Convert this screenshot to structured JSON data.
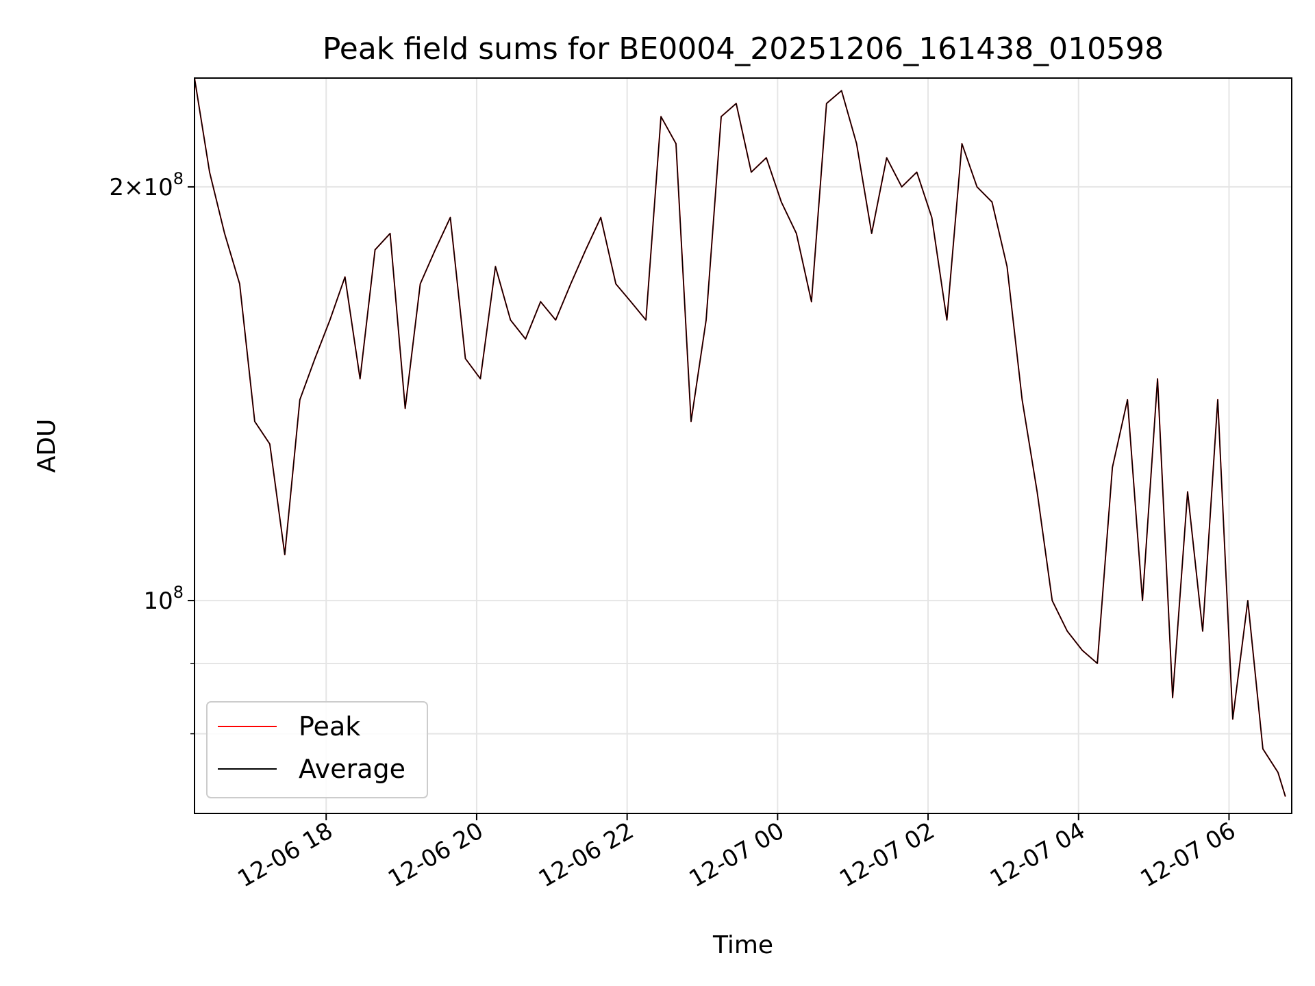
{
  "chart_data": {
    "type": "line",
    "title": "Peak field sums for BE0004_20251206_161438_010598",
    "xlabel": "Time",
    "ylabel": "ADU",
    "y_scale": "log",
    "ylim": [
      70000000,
      240000000
    ],
    "xlim": [
      "2025-12-06 16:15",
      "2025-12-07 06:50"
    ],
    "x_ticks": [
      {
        "value": "2025-12-06 18:00",
        "label": "12-06 18"
      },
      {
        "value": "2025-12-06 20:00",
        "label": "12-06 20"
      },
      {
        "value": "2025-12-06 22:00",
        "label": "12-06 22"
      },
      {
        "value": "2025-12-07 00:00",
        "label": "12-07 00"
      },
      {
        "value": "2025-12-07 02:00",
        "label": "12-07 02"
      },
      {
        "value": "2025-12-07 04:00",
        "label": "12-07 04"
      },
      {
        "value": "2025-12-07 06:00",
        "label": "12-07 06"
      }
    ],
    "y_ticks": [
      {
        "value": 100000000,
        "base": "10",
        "exp": "8",
        "coef": ""
      },
      {
        "value": 200000000,
        "base": "10",
        "exp": "8",
        "coef": "2×"
      }
    ],
    "y_minor_ticks": [
      90000000,
      80000000
    ],
    "grid": true,
    "legend_position": "lower-left",
    "x": [
      "2025-12-06 16:15",
      "2025-12-06 16:27",
      "2025-12-06 16:39",
      "2025-12-06 16:51",
      "2025-12-06 17:03",
      "2025-12-06 17:15",
      "2025-12-06 17:27",
      "2025-12-06 17:39",
      "2025-12-06 17:51",
      "2025-12-06 18:03",
      "2025-12-06 18:15",
      "2025-12-06 18:27",
      "2025-12-06 18:39",
      "2025-12-06 18:51",
      "2025-12-06 19:03",
      "2025-12-06 19:15",
      "2025-12-06 19:27",
      "2025-12-06 19:39",
      "2025-12-06 19:51",
      "2025-12-06 20:03",
      "2025-12-06 20:15",
      "2025-12-06 20:27",
      "2025-12-06 20:39",
      "2025-12-06 20:51",
      "2025-12-06 21:03",
      "2025-12-06 21:15",
      "2025-12-06 21:27",
      "2025-12-06 21:39",
      "2025-12-06 21:51",
      "2025-12-06 22:03",
      "2025-12-06 22:15",
      "2025-12-06 22:27",
      "2025-12-06 22:39",
      "2025-12-06 22:51",
      "2025-12-06 23:03",
      "2025-12-06 23:15",
      "2025-12-06 23:27",
      "2025-12-06 23:39",
      "2025-12-06 23:51",
      "2025-12-07 00:03",
      "2025-12-07 00:15",
      "2025-12-07 00:27",
      "2025-12-07 00:39",
      "2025-12-07 00:51",
      "2025-12-07 01:03",
      "2025-12-07 01:15",
      "2025-12-07 01:27",
      "2025-12-07 01:39",
      "2025-12-07 01:51",
      "2025-12-07 02:03",
      "2025-12-07 02:15",
      "2025-12-07 02:27",
      "2025-12-07 02:39",
      "2025-12-07 02:51",
      "2025-12-07 03:03",
      "2025-12-07 03:15",
      "2025-12-07 03:27",
      "2025-12-07 03:39",
      "2025-12-07 03:51",
      "2025-12-07 04:03",
      "2025-12-07 04:15",
      "2025-12-07 04:27",
      "2025-12-07 04:39",
      "2025-12-07 04:51",
      "2025-12-07 05:03",
      "2025-12-07 05:15",
      "2025-12-07 05:27",
      "2025-12-07 05:39",
      "2025-12-07 05:51",
      "2025-12-07 06:03",
      "2025-12-07 06:15",
      "2025-12-07 06:27",
      "2025-12-07 06:39",
      "2025-12-07 06:45"
    ],
    "series": [
      {
        "name": "Peak",
        "color": "#ff0000",
        "values": [
          240000000,
          205000000,
          185000000,
          170000000,
          135000000,
          130000000,
          108000000,
          140000000,
          150000000,
          160000000,
          172000000,
          145000000,
          180000000,
          185000000,
          138000000,
          170000000,
          180000000,
          190000000,
          150000000,
          145000000,
          175000000,
          160000000,
          155000000,
          165000000,
          160000000,
          170000000,
          180000000,
          190000000,
          170000000,
          165000000,
          160000000,
          225000000,
          215000000,
          135000000,
          160000000,
          225000000,
          230000000,
          205000000,
          210000000,
          195000000,
          185000000,
          165000000,
          230000000,
          235000000,
          215000000,
          185000000,
          210000000,
          200000000,
          205000000,
          190000000,
          160000000,
          215000000,
          200000000,
          195000000,
          175000000,
          140000000,
          120000000,
          100000000,
          95000000,
          92000000,
          90000000,
          125000000,
          140000000,
          100000000,
          145000000,
          85000000,
          120000000,
          95000000,
          140000000,
          82000000,
          100000000,
          78000000,
          75000000,
          72000000
        ]
      },
      {
        "name": "Average",
        "color": "#000000",
        "values": [
          240000000,
          205000000,
          185000000,
          170000000,
          135000000,
          130000000,
          108000000,
          140000000,
          150000000,
          160000000,
          172000000,
          145000000,
          180000000,
          185000000,
          138000000,
          170000000,
          180000000,
          190000000,
          150000000,
          145000000,
          175000000,
          160000000,
          155000000,
          165000000,
          160000000,
          170000000,
          180000000,
          190000000,
          170000000,
          165000000,
          160000000,
          225000000,
          215000000,
          135000000,
          160000000,
          225000000,
          230000000,
          205000000,
          210000000,
          195000000,
          185000000,
          165000000,
          230000000,
          235000000,
          215000000,
          185000000,
          210000000,
          200000000,
          205000000,
          190000000,
          160000000,
          215000000,
          200000000,
          195000000,
          175000000,
          140000000,
          120000000,
          100000000,
          95000000,
          92000000,
          90000000,
          125000000,
          140000000,
          100000000,
          145000000,
          85000000,
          120000000,
          95000000,
          140000000,
          82000000,
          100000000,
          78000000,
          75000000,
          72000000
        ]
      }
    ]
  }
}
